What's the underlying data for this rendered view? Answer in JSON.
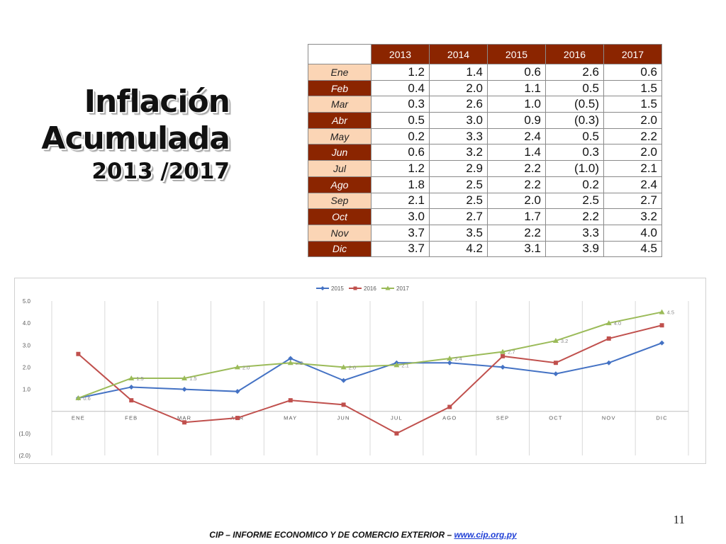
{
  "title": {
    "line1": "Inflación",
    "line2": "Acumulada",
    "line3": "2013 /2017"
  },
  "table": {
    "years": [
      "2013",
      "2014",
      "2015",
      "2016",
      "2017"
    ],
    "rows": [
      {
        "month": "Ene",
        "values": [
          "1.2",
          "1.4",
          "0.6",
          "2.6",
          "0.6"
        ]
      },
      {
        "month": "Feb",
        "values": [
          "0.4",
          "2.0",
          "1.1",
          "0.5",
          "1.5"
        ]
      },
      {
        "month": "Mar",
        "values": [
          "0.3",
          "2.6",
          "1.0",
          "(0.5)",
          "1.5"
        ]
      },
      {
        "month": "Abr",
        "values": [
          "0.5",
          "3.0",
          "0.9",
          "(0.3)",
          "2.0"
        ]
      },
      {
        "month": "May",
        "values": [
          "0.2",
          "3.3",
          "2.4",
          "0.5",
          "2.2"
        ]
      },
      {
        "month": "Jun",
        "values": [
          "0.6",
          "3.2",
          "1.4",
          "0.3",
          "2.0"
        ]
      },
      {
        "month": "Jul",
        "values": [
          "1.2",
          "2.9",
          "2.2",
          "(1.0)",
          "2.1"
        ]
      },
      {
        "month": "Ago",
        "values": [
          "1.8",
          "2.5",
          "2.2",
          "0.2",
          "2.4"
        ]
      },
      {
        "month": "Sep",
        "values": [
          "2.1",
          "2.5",
          "2.0",
          "2.5",
          "2.7"
        ]
      },
      {
        "month": "Oct",
        "values": [
          "3.0",
          "2.7",
          "1.7",
          "2.2",
          "3.2"
        ]
      },
      {
        "month": "Nov",
        "values": [
          "3.7",
          "3.5",
          "2.2",
          "3.3",
          "4.0"
        ]
      },
      {
        "month": "Dic",
        "values": [
          "3.7",
          "4.2",
          "3.1",
          "3.9",
          "4.5"
        ]
      }
    ]
  },
  "chart_data": {
    "type": "line",
    "categories": [
      "ENE",
      "FEB",
      "MAR",
      "ABR",
      "MAY",
      "JUN",
      "JUL",
      "AGO",
      "SEP",
      "OCT",
      "NOV",
      "DIC"
    ],
    "ylim": [
      -2,
      5
    ],
    "y_ticks": [
      5,
      4,
      3,
      2,
      1,
      0,
      -1,
      -2
    ],
    "y_tick_labels": [
      "5.0",
      "4.0",
      "3.0",
      "2.0",
      "1.0",
      "",
      "(1.0)",
      "(2.0)"
    ],
    "grid": "vertical",
    "legend": "top",
    "series": [
      {
        "name": "2015",
        "color": "#4472c4",
        "marker": "diamond",
        "values": [
          0.6,
          1.1,
          1.0,
          0.9,
          2.4,
          1.4,
          2.2,
          2.2,
          2.0,
          1.7,
          2.2,
          3.1
        ],
        "labels": [
          "0.6",
          "",
          "",
          "",
          "",
          "",
          "",
          "",
          "",
          "",
          "",
          ""
        ]
      },
      {
        "name": "2016",
        "color": "#c0504d",
        "marker": "square",
        "values": [
          2.6,
          0.5,
          -0.5,
          -0.3,
          0.5,
          0.3,
          -1.0,
          0.2,
          2.5,
          2.2,
          3.3,
          3.9
        ],
        "labels": [
          "",
          "",
          "",
          "",
          "",
          "",
          "",
          "",
          "",
          "",
          "",
          ""
        ]
      },
      {
        "name": "2017",
        "color": "#9bbb59",
        "marker": "triangle",
        "values": [
          0.6,
          1.5,
          1.5,
          2.0,
          2.2,
          2.0,
          2.1,
          2.4,
          2.7,
          3.2,
          4.0,
          4.5
        ],
        "labels": [
          "",
          "1.5",
          "1.5",
          "2.0",
          "2.2",
          "2.0",
          "2.1",
          "2.4",
          "2.7",
          "3.2",
          "4.0",
          "4.5"
        ]
      }
    ]
  },
  "page_number": "11",
  "footer": {
    "text": "CIP – INFORME ECONOMICO Y DE COMERCIO EXTERIOR – ",
    "link": "www.cip.org.py"
  }
}
